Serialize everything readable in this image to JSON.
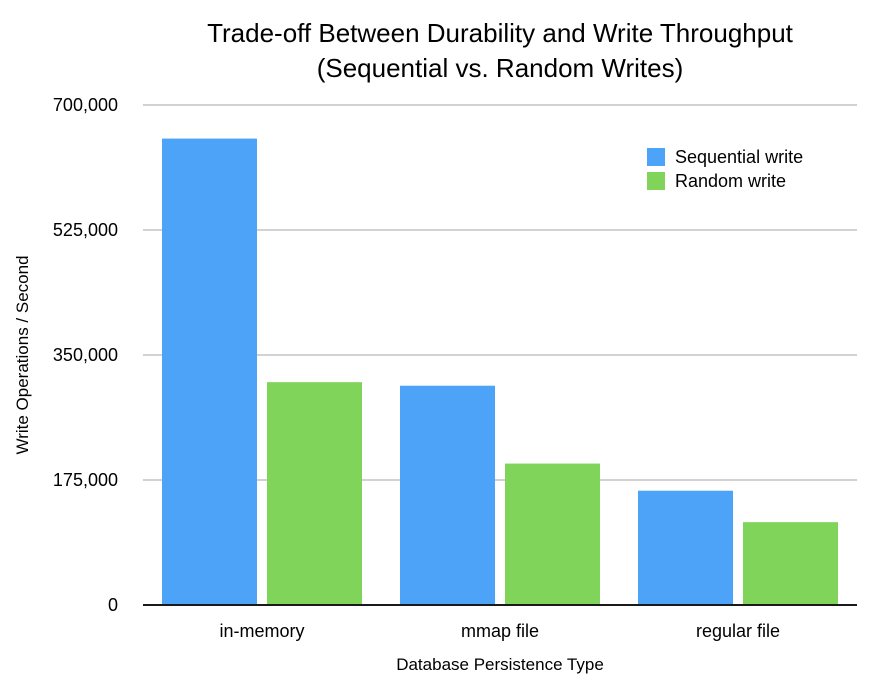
{
  "chart_data": {
    "type": "bar",
    "title": "Trade-off Between Durability and Write Throughput",
    "subtitle": "(Sequential vs. Random Writes)",
    "xlabel": "Database Persistence Type",
    "ylabel": "Write Operations / Second",
    "categories": [
      "in-memory",
      "mmap file",
      "regular file"
    ],
    "series": [
      {
        "name": "Sequential write",
        "color": "#4DA3F7",
        "values": [
          653000,
          307000,
          160000
        ]
      },
      {
        "name": "Random write",
        "color": "#80D45A",
        "values": [
          312000,
          198000,
          116000
        ]
      }
    ],
    "ylim": [
      0,
      700000
    ],
    "yticks": [
      0,
      175000,
      350000,
      525000,
      700000
    ],
    "ytick_labels": [
      "0",
      "175,000",
      "350,000",
      "525,000",
      "700,000"
    ],
    "grid": true,
    "legend_position": "top-right"
  }
}
